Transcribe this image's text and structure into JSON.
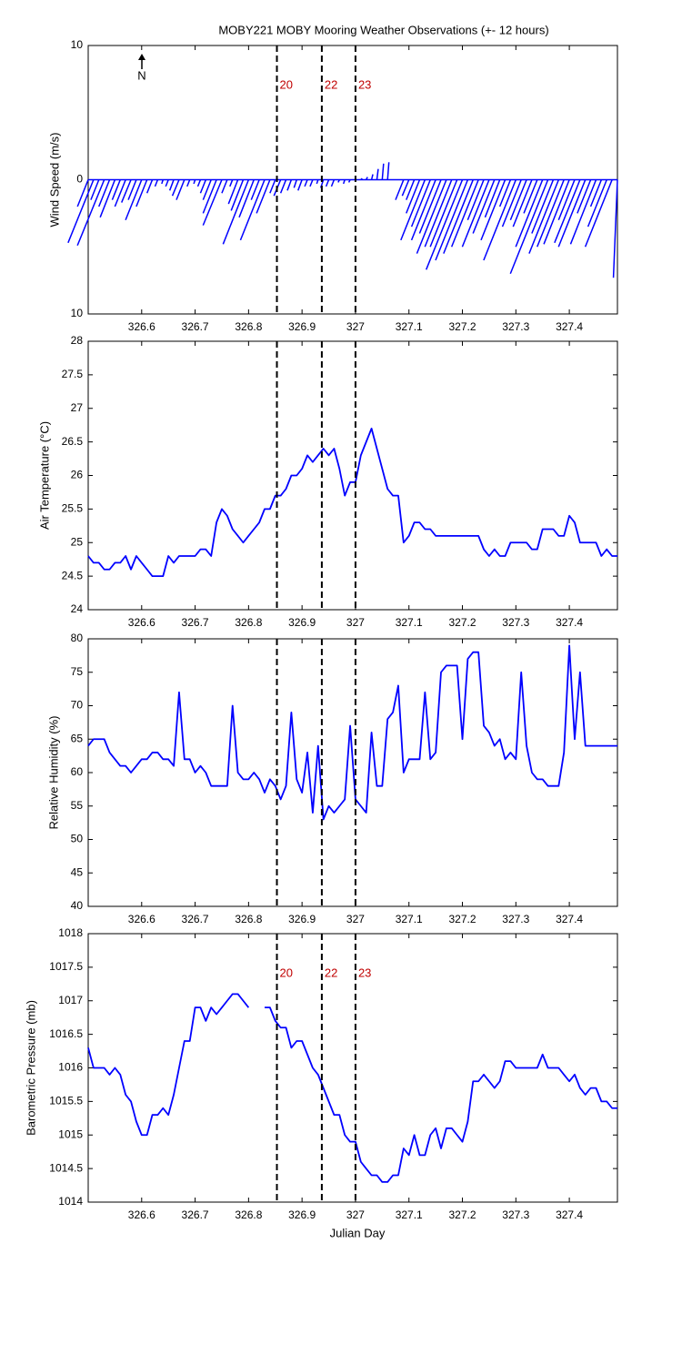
{
  "chart_data": [
    {
      "type": "stick",
      "title": "MOBY221 MOBY Mooring Weather Observations (+- 12 hours)",
      "y_label": "Wind Speed (m/s)",
      "annotation": "N",
      "color": "#0000ff",
      "x": [
        326.5,
        326.51,
        326.52,
        326.53,
        326.54,
        326.55,
        326.56,
        326.57,
        326.58,
        326.59,
        326.6,
        326.61,
        326.62,
        326.63,
        326.64,
        326.65,
        326.66,
        326.67,
        326.68,
        326.69,
        326.7,
        326.71,
        326.72,
        326.73,
        326.74,
        326.75,
        326.76,
        326.77,
        326.78,
        326.79,
        326.8,
        326.81,
        326.82,
        326.83,
        326.84,
        326.85,
        326.86,
        326.87,
        326.88,
        326.89,
        326.9,
        326.91,
        326.92,
        326.93,
        326.94,
        326.95,
        326.96,
        326.97,
        326.98,
        326.99,
        327.0,
        327.01,
        327.02,
        327.03,
        327.04,
        327.05,
        327.06,
        327.07,
        327.08,
        327.09,
        327.1,
        327.11,
        327.12,
        327.13,
        327.14,
        327.15,
        327.16,
        327.17,
        327.18,
        327.19,
        327.2,
        327.21,
        327.22,
        327.23,
        327.24,
        327.25,
        327.26,
        327.27,
        327.28,
        327.29,
        327.3,
        327.31,
        327.32,
        327.33,
        327.34,
        327.35,
        327.36,
        327.37,
        327.38,
        327.39,
        327.4,
        327.41,
        327.42,
        327.43,
        327.44,
        327.45,
        327.46,
        327.47,
        327.48,
        327.49
      ],
      "values": [
        -2,
        -4.7,
        -1.5,
        -4.9,
        -2,
        -2.8,
        -1.5,
        -2,
        -1.7,
        -1.5,
        -3,
        -2,
        -1,
        -0.5,
        -0.3,
        -0.5,
        -0.8,
        -1.2,
        -1.5,
        -0.5,
        -0.3,
        -0.5,
        -1,
        -1.5,
        -2.5,
        -3.4,
        -1,
        -0.5,
        -1.8,
        -2.3,
        -4.8,
        -2.8,
        -1.5,
        -4.5,
        -2.5,
        -1,
        -1.2,
        -1,
        -0.8,
        -0.6,
        -0.8,
        -0.5,
        -0.5,
        -0.3,
        -0.6,
        -0.5,
        -0.5,
        -0.2,
        -0.3,
        -0.2,
        -0.1,
        0.1,
        0.2,
        0.4,
        0.8,
        1.2,
        1.3,
        0,
        0,
        -1.5,
        -1.2,
        -1.5,
        -2.5,
        -4.5,
        -3.5,
        -4.5,
        -4,
        -5.5,
        -5,
        -5,
        -6.7,
        -6,
        -5.5,
        -5,
        -3,
        -5,
        -4,
        -2.8,
        -4.5,
        -2,
        -6,
        -3.5,
        -3,
        -3.5,
        -2.5,
        -5,
        -7,
        -4,
        -5.5,
        -5,
        -4.8,
        -3,
        -4.7,
        -5,
        -2.5,
        -4.8,
        -2,
        -3.5,
        -5,
        -7.3
      ],
      "u": [
        -0.8,
        -1.9,
        -0.6,
        -2,
        -0.8,
        -1.1,
        -0.6,
        -0.8,
        -0.7,
        -0.6,
        -1.2,
        -0.8,
        -0.4,
        -0.2,
        -0.1,
        -0.2,
        -0.3,
        -0.5,
        -0.6,
        -0.2,
        -0.1,
        -0.2,
        -0.4,
        -0.6,
        -1,
        -1.4,
        -0.4,
        -0.2,
        -0.7,
        -0.9,
        -1.9,
        -1.1,
        -0.6,
        -1.8,
        -1,
        -0.4,
        -0.5,
        -0.4,
        -0.3,
        -0.2,
        -0.3,
        -0.2,
        -0.2,
        -0.1,
        -0.2,
        -0.2,
        -0.2,
        -0.1,
        -0.1,
        -0.1,
        0,
        0.1,
        0.1,
        0.1,
        0.1,
        0.1,
        0.1,
        0,
        0,
        -0.6,
        -0.5,
        -0.6,
        -1,
        -1.8,
        -1.4,
        -1.8,
        -1.6,
        -2.2,
        -2,
        -2,
        -2.7,
        -2.4,
        -2.2,
        -2,
        -1.2,
        -2,
        -1.6,
        -1.1,
        -1.8,
        -0.8,
        -2.4,
        -1.4,
        -1.2,
        -1.4,
        -1,
        -2,
        -2.8,
        -1.6,
        -2.2,
        -2,
        -1.9,
        -1.2,
        -1.9,
        -2,
        -1,
        -1.9,
        -0.8,
        -1.4,
        -2,
        -0.3
      ],
      "xlim": [
        326.5,
        327.49
      ],
      "xticks": [
        326.6,
        326.7,
        326.8,
        326.9,
        327,
        327.1,
        327.2,
        327.3,
        327.4
      ],
      "ylim": [
        -10,
        10
      ],
      "yticks": [
        {
          "value": -10,
          "label": "10"
        },
        0,
        10
      ],
      "markers": [
        {
          "x": 326.853,
          "label": "20"
        },
        {
          "x": 326.937,
          "label": "22"
        },
        {
          "x": 327.0,
          "label": "23"
        }
      ]
    },
    {
      "type": "line",
      "y_label": "Air Temperature (°C)",
      "color": "#0000ff",
      "x": [
        326.5,
        326.51,
        326.52,
        326.53,
        326.54,
        326.55,
        326.56,
        326.57,
        326.58,
        326.59,
        326.6,
        326.61,
        326.62,
        326.63,
        326.64,
        326.65,
        326.66,
        326.67,
        326.68,
        326.69,
        326.7,
        326.71,
        326.72,
        326.73,
        326.74,
        326.75,
        326.76,
        326.77,
        326.78,
        326.79,
        326.8,
        326.81,
        326.82,
        326.83,
        326.84,
        326.85,
        326.86,
        326.87,
        326.88,
        326.89,
        326.9,
        326.91,
        326.92,
        326.93,
        326.94,
        326.95,
        326.96,
        326.97,
        326.98,
        326.99,
        327.0,
        327.01,
        327.02,
        327.03,
        327.04,
        327.05,
        327.06,
        327.07,
        327.08,
        327.09,
        327.1,
        327.11,
        327.12,
        327.13,
        327.14,
        327.15,
        327.16,
        327.17,
        327.18,
        327.19,
        327.2,
        327.21,
        327.22,
        327.23,
        327.24,
        327.25,
        327.26,
        327.27,
        327.28,
        327.29,
        327.3,
        327.31,
        327.32,
        327.33,
        327.34,
        327.35,
        327.36,
        327.37,
        327.38,
        327.39,
        327.4,
        327.41,
        327.42,
        327.43,
        327.44,
        327.45,
        327.46,
        327.47,
        327.48,
        327.49
      ],
      "values": [
        24.8,
        24.7,
        24.7,
        24.6,
        24.6,
        24.7,
        24.7,
        24.8,
        24.6,
        24.8,
        24.7,
        24.6,
        24.5,
        24.5,
        24.5,
        24.8,
        24.7,
        24.8,
        24.8,
        24.8,
        24.8,
        24.9,
        24.9,
        24.8,
        25.3,
        25.5,
        25.4,
        25.2,
        25.1,
        25.0,
        25.1,
        25.2,
        25.3,
        25.5,
        25.5,
        25.7,
        25.7,
        25.8,
        26.0,
        26.0,
        26.1,
        26.3,
        26.2,
        26.3,
        26.4,
        26.3,
        26.4,
        26.1,
        25.7,
        25.9,
        25.9,
        26.3,
        26.5,
        26.7,
        26.4,
        26.1,
        25.8,
        25.7,
        25.7,
        25.0,
        25.1,
        25.3,
        25.3,
        25.2,
        25.2,
        25.1,
        25.1,
        25.1,
        25.1,
        25.1,
        25.1,
        25.1,
        25.1,
        25.1,
        24.9,
        24.8,
        24.9,
        24.8,
        24.8,
        25.0,
        25.0,
        25.0,
        25.0,
        24.9,
        24.9,
        25.2,
        25.2,
        25.2,
        25.1,
        25.1,
        25.4,
        25.3,
        25.0,
        25.0,
        25.0,
        25.0,
        24.8,
        24.9,
        24.8,
        24.8
      ],
      "xlim": [
        326.5,
        327.49
      ],
      "xticks": [
        326.6,
        326.7,
        326.8,
        326.9,
        327,
        327.1,
        327.2,
        327.3,
        327.4
      ],
      "ylim": [
        24,
        28
      ],
      "yticks": [
        24,
        24.5,
        25,
        25.5,
        26,
        26.5,
        27,
        27.5,
        28
      ],
      "markers": [
        {
          "x": 326.853
        },
        {
          "x": 326.937
        },
        {
          "x": 327.0
        }
      ]
    },
    {
      "type": "line",
      "y_label": "Relative Humidity (%)",
      "color": "#0000ff",
      "x": [
        326.5,
        326.51,
        326.52,
        326.53,
        326.54,
        326.55,
        326.56,
        326.57,
        326.58,
        326.59,
        326.6,
        326.61,
        326.62,
        326.63,
        326.64,
        326.65,
        326.66,
        326.67,
        326.68,
        326.69,
        326.7,
        326.71,
        326.72,
        326.73,
        326.74,
        326.75,
        326.76,
        326.77,
        326.78,
        326.79,
        326.8,
        326.81,
        326.82,
        326.83,
        326.84,
        326.85,
        326.86,
        326.87,
        326.88,
        326.89,
        326.9,
        326.91,
        326.92,
        326.93,
        326.94,
        326.95,
        326.96,
        326.97,
        326.98,
        326.99,
        327.0,
        327.01,
        327.02,
        327.03,
        327.04,
        327.05,
        327.06,
        327.07,
        327.08,
        327.09,
        327.1,
        327.11,
        327.12,
        327.13,
        327.14,
        327.15,
        327.16,
        327.17,
        327.18,
        327.19,
        327.2,
        327.21,
        327.22,
        327.23,
        327.24,
        327.25,
        327.26,
        327.27,
        327.28,
        327.29,
        327.3,
        327.31,
        327.32,
        327.33,
        327.34,
        327.35,
        327.36,
        327.37,
        327.38,
        327.39,
        327.4,
        327.41,
        327.42,
        327.43,
        327.44,
        327.45,
        327.46,
        327.47,
        327.48,
        327.49
      ],
      "values": [
        64,
        65,
        65,
        65,
        63,
        62,
        61,
        61,
        60,
        61,
        62,
        62,
        63,
        63,
        62,
        62,
        61,
        72,
        62,
        62,
        60,
        61,
        60,
        58,
        58,
        58,
        58,
        70,
        60,
        59,
        59,
        60,
        59,
        57,
        59,
        58,
        56,
        58,
        69,
        59,
        57,
        63,
        54,
        64,
        53,
        55,
        54,
        55,
        56,
        67,
        56,
        55,
        54,
        66,
        58,
        58,
        68,
        69,
        73,
        60,
        62,
        62,
        62,
        72,
        62,
        63,
        75,
        76,
        76,
        76,
        65,
        77,
        78,
        78,
        67,
        66,
        64,
        65,
        62,
        63,
        62,
        75,
        64,
        60,
        59,
        59,
        58,
        58,
        58,
        63,
        79,
        65,
        75,
        64,
        64,
        64,
        64,
        64,
        64,
        64
      ],
      "xlim": [
        326.5,
        327.49
      ],
      "xticks": [
        326.6,
        326.7,
        326.8,
        326.9,
        327,
        327.1,
        327.2,
        327.3,
        327.4
      ],
      "ylim": [
        40,
        80
      ],
      "yticks": [
        40,
        45,
        50,
        55,
        60,
        65,
        70,
        75,
        80
      ],
      "markers": [
        {
          "x": 326.853
        },
        {
          "x": 326.937
        },
        {
          "x": 327.0
        }
      ]
    },
    {
      "type": "line",
      "y_label": "Barometric Pressure (mb)",
      "x_label": "Julian Day",
      "color": "#0000ff",
      "x": [
        326.5,
        326.51,
        326.52,
        326.53,
        326.54,
        326.55,
        326.56,
        326.57,
        326.58,
        326.59,
        326.6,
        326.61,
        326.62,
        326.63,
        326.64,
        326.65,
        326.66,
        326.67,
        326.68,
        326.69,
        326.7,
        326.71,
        326.72,
        326.73,
        326.74,
        326.75,
        326.76,
        326.77,
        326.78,
        326.79,
        326.8,
        326.81,
        326.82,
        326.83,
        326.84,
        326.85,
        326.86,
        326.87,
        326.88,
        326.89,
        326.9,
        326.91,
        326.92,
        326.93,
        326.94,
        326.95,
        326.96,
        326.97,
        326.98,
        326.99,
        327.0,
        327.01,
        327.02,
        327.03,
        327.04,
        327.05,
        327.06,
        327.07,
        327.08,
        327.09,
        327.1,
        327.11,
        327.12,
        327.13,
        327.14,
        327.15,
        327.16,
        327.17,
        327.18,
        327.19,
        327.2,
        327.21,
        327.22,
        327.23,
        327.24,
        327.25,
        327.26,
        327.27,
        327.28,
        327.29,
        327.3,
        327.31,
        327.32,
        327.33,
        327.34,
        327.35,
        327.36,
        327.37,
        327.38,
        327.39,
        327.4,
        327.41,
        327.42,
        327.43,
        327.44,
        327.45,
        327.46,
        327.47,
        327.48,
        327.49
      ],
      "values": [
        1016.3,
        1016.0,
        1016.0,
        1016.0,
        1015.9,
        1016.0,
        1015.9,
        1015.6,
        1015.5,
        1015.2,
        1015.0,
        1015.0,
        1015.3,
        1015.3,
        1015.4,
        1015.3,
        1015.6,
        1016.0,
        1016.4,
        1016.4,
        1016.9,
        1016.9,
        1016.7,
        1016.9,
        1016.8,
        1016.9,
        1017.0,
        1017.1,
        1017.1,
        1017.0,
        1016.9,
        null,
        null,
        1016.9,
        1016.9,
        1016.7,
        1016.6,
        1016.6,
        1016.3,
        1016.4,
        1016.4,
        1016.2,
        1016.0,
        1015.9,
        1015.7,
        1015.5,
        1015.3,
        1015.3,
        1015.0,
        1014.9,
        1014.9,
        1014.6,
        1014.5,
        1014.4,
        1014.4,
        1014.3,
        1014.3,
        1014.4,
        1014.4,
        1014.8,
        1014.7,
        1015.0,
        1014.7,
        1014.7,
        1015.0,
        1015.1,
        1014.8,
        1015.1,
        1015.1,
        1015.0,
        1014.9,
        1015.2,
        1015.8,
        1015.8,
        1015.9,
        1015.8,
        1015.7,
        1015.8,
        1016.1,
        1016.1,
        1016.0,
        1016.0,
        1016.0,
        1016.0,
        1016.0,
        1016.2,
        1016.0,
        1016.0,
        1016.0,
        1015.9,
        1015.8,
        1015.9,
        1015.7,
        1015.6,
        1015.7,
        1015.7,
        1015.5,
        1015.5,
        1015.4,
        1015.4
      ],
      "xlim": [
        326.5,
        327.49
      ],
      "xticks": [
        326.6,
        326.7,
        326.8,
        326.9,
        327,
        327.1,
        327.2,
        327.3,
        327.4
      ],
      "ylim": [
        1014,
        1018
      ],
      "yticks": [
        1014,
        1014.5,
        1015,
        1015.5,
        1016,
        1016.5,
        1017,
        1017.5,
        1018
      ],
      "markers": [
        {
          "x": 326.853,
          "label": "20"
        },
        {
          "x": 326.937,
          "label": "22"
        },
        {
          "x": 327.0,
          "label": "23"
        }
      ]
    }
  ]
}
